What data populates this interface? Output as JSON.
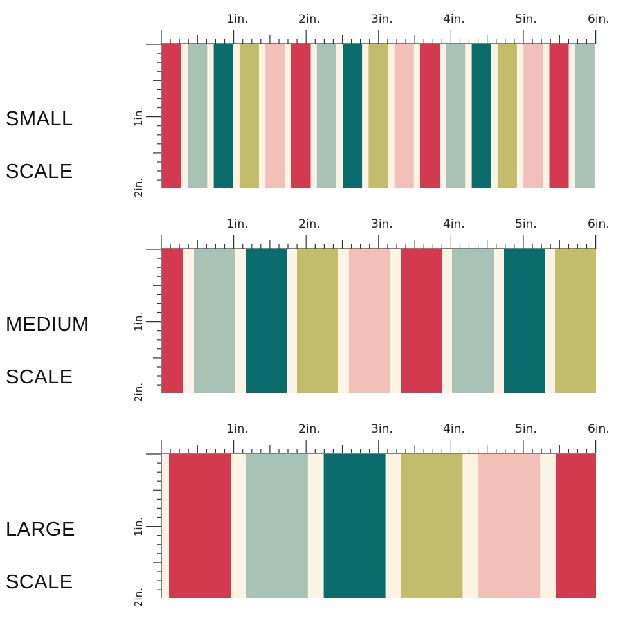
{
  "colors": {
    "red": "#d33a50",
    "sage": "#a8c2b5",
    "teal": "#0b6c6c",
    "olive": "#c2bd6a",
    "pink": "#f2c0b8",
    "cream": "#fbf4e4",
    "ruler": "#333333"
  },
  "ruler": {
    "top_labels": [
      "1in.",
      "2in.",
      "3in.",
      "4in.",
      "5in.",
      "6in."
    ],
    "side_labels": [
      "1in.",
      "2in."
    ]
  },
  "scales": [
    {
      "label_line1": "SMALL",
      "label_line2": "SCALE",
      "stripe_colors": [
        "red",
        "sage",
        "teal",
        "olive",
        "pink",
        "red",
        "sage",
        "teal",
        "olive",
        "pink",
        "red",
        "sage",
        "teal",
        "olive",
        "pink",
        "red",
        "sage"
      ]
    },
    {
      "label_line1": "MEDIUM",
      "label_line2": "SCALE",
      "stripe_colors": [
        "red",
        "sage",
        "teal",
        "olive",
        "pink",
        "red",
        "sage",
        "teal",
        "olive"
      ]
    },
    {
      "label_line1": "LARGE",
      "label_line2": "SCALE",
      "stripe_colors": [
        "red",
        "sage",
        "teal",
        "olive",
        "pink",
        "red"
      ]
    }
  ]
}
